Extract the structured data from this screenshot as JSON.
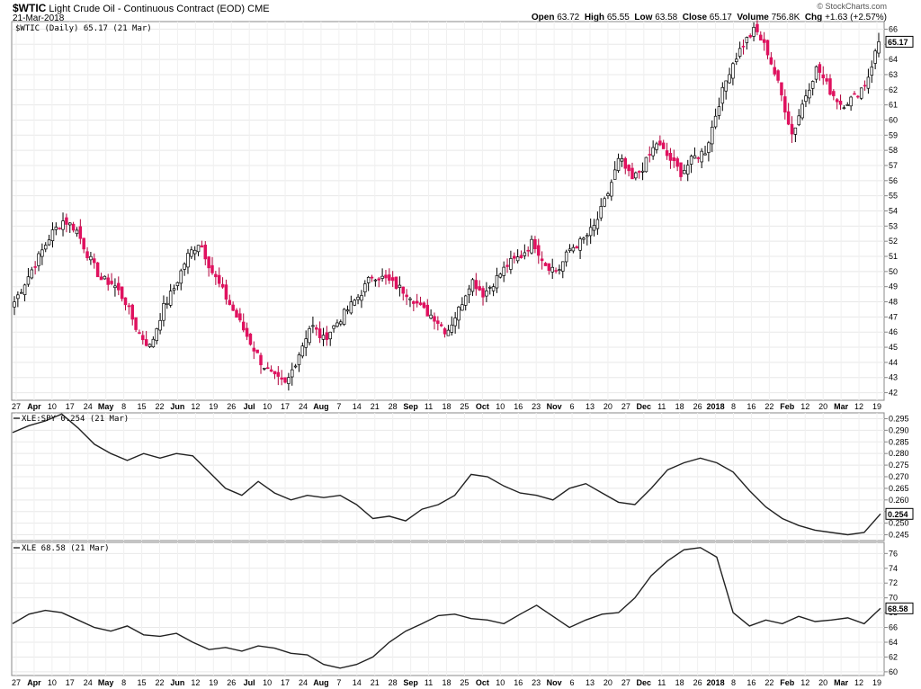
{
  "header": {
    "symbol": "$WTIC",
    "description": "Light Crude Oil - Continuous Contract (EOD)",
    "exchange": "CME",
    "date": "21-Mar-2018",
    "credit": "© StockCharts.com",
    "ohlc": {
      "open_label": "Open",
      "open": "63.72",
      "high_label": "High",
      "high": "65.55",
      "low_label": "Low",
      "low": "63.58",
      "close_label": "Close",
      "close": "65.17",
      "volume_label": "Volume",
      "volume": "756.8K",
      "chg_label": "Chg",
      "chg": "+1.63 (+2.57%)"
    }
  },
  "x_axis_labels": [
    {
      "t": "27",
      "b": false
    },
    {
      "t": "Apr",
      "b": true
    },
    {
      "t": "10",
      "b": false
    },
    {
      "t": "17",
      "b": false
    },
    {
      "t": "24",
      "b": false
    },
    {
      "t": "May",
      "b": true
    },
    {
      "t": "8",
      "b": false
    },
    {
      "t": "15",
      "b": false
    },
    {
      "t": "22",
      "b": false
    },
    {
      "t": "Jun",
      "b": true
    },
    {
      "t": "12",
      "b": false
    },
    {
      "t": "19",
      "b": false
    },
    {
      "t": "26",
      "b": false
    },
    {
      "t": "Jul",
      "b": true
    },
    {
      "t": "10",
      "b": false
    },
    {
      "t": "17",
      "b": false
    },
    {
      "t": "24",
      "b": false
    },
    {
      "t": "Aug",
      "b": true
    },
    {
      "t": "7",
      "b": false
    },
    {
      "t": "14",
      "b": false
    },
    {
      "t": "21",
      "b": false
    },
    {
      "t": "28",
      "b": false
    },
    {
      "t": "Sep",
      "b": true
    },
    {
      "t": "11",
      "b": false
    },
    {
      "t": "18",
      "b": false
    },
    {
      "t": "25",
      "b": false
    },
    {
      "t": "Oct",
      "b": true
    },
    {
      "t": "10",
      "b": false
    },
    {
      "t": "16",
      "b": false
    },
    {
      "t": "23",
      "b": false
    },
    {
      "t": "Nov",
      "b": true
    },
    {
      "t": "6",
      "b": false
    },
    {
      "t": "13",
      "b": false
    },
    {
      "t": "20",
      "b": false
    },
    {
      "t": "27",
      "b": false
    },
    {
      "t": "Dec",
      "b": true
    },
    {
      "t": "11",
      "b": false
    },
    {
      "t": "18",
      "b": false
    },
    {
      "t": "26",
      "b": false
    },
    {
      "t": "2018",
      "b": true
    },
    {
      "t": "8",
      "b": false
    },
    {
      "t": "16",
      "b": false
    },
    {
      "t": "22",
      "b": false
    },
    {
      "t": "Feb",
      "b": true
    },
    {
      "t": "12",
      "b": false
    },
    {
      "t": "20",
      "b": false
    },
    {
      "t": "Mar",
      "b": true
    },
    {
      "t": "12",
      "b": false
    },
    {
      "t": "19",
      "b": false
    }
  ],
  "chart_data": [
    {
      "type": "candlestick",
      "title": "$WTIC (Daily) 65.17 (21 Mar)",
      "last_value_label": "65.17",
      "ylim": [
        41.5,
        66.5
      ],
      "y_ticks": [
        42,
        43,
        44,
        45,
        46,
        47,
        48,
        49,
        50,
        51,
        52,
        53,
        54,
        55,
        56,
        57,
        58,
        59,
        60,
        61,
        62,
        63,
        64,
        65,
        66
      ],
      "anchor_closes": [
        48.0,
        49.5,
        51.0,
        52.5,
        53.4,
        52.8,
        51.0,
        49.5,
        49.2,
        48.0,
        46.0,
        45.0,
        47.5,
        49.0,
        51.0,
        52.0,
        50.0,
        48.5,
        47.0,
        45.5,
        44.0,
        43.0,
        42.5,
        44.5,
        46.5,
        45.5,
        46.5,
        47.5,
        48.5,
        49.8,
        49.5,
        49.0,
        48.5,
        47.5,
        47.0,
        46.0,
        47.5,
        49.5,
        48.5,
        49.5,
        50.5,
        51.0,
        52.0,
        50.5,
        50.0,
        51.5,
        52.0,
        53.0,
        55.0,
        57.5,
        56.0,
        57.0,
        58.5,
        57.5,
        56.5,
        57.5,
        58.0,
        61.0,
        63.5,
        65.0,
        66.0,
        64.5,
        62.0,
        59.0,
        61.5,
        63.5,
        62.0,
        61.0,
        61.5,
        62.5,
        65.17
      ],
      "up_color": "#ffffff",
      "down_color": "#e0115f"
    },
    {
      "type": "line",
      "title": "XLE:SPY 0.254 (21 Mar)",
      "last_value_label": "0.254",
      "ylim": [
        0.2425,
        0.2975
      ],
      "y_ticks": [
        0.245,
        0.25,
        0.255,
        0.26,
        0.265,
        0.27,
        0.275,
        0.28,
        0.285,
        0.29,
        0.295
      ],
      "y_tick_labels": [
        "0.245",
        "0.250",
        "0.255",
        "0.260",
        "0.265",
        "0.270",
        "0.275",
        "0.280",
        "0.285",
        "0.290",
        "0.295"
      ],
      "values": [
        0.289,
        0.292,
        0.294,
        0.297,
        0.291,
        0.284,
        0.28,
        0.277,
        0.28,
        0.278,
        0.28,
        0.279,
        0.272,
        0.265,
        0.262,
        0.268,
        0.263,
        0.26,
        0.262,
        0.261,
        0.262,
        0.258,
        0.252,
        0.253,
        0.251,
        0.256,
        0.258,
        0.262,
        0.271,
        0.27,
        0.266,
        0.263,
        0.262,
        0.26,
        0.265,
        0.267,
        0.263,
        0.259,
        0.258,
        0.265,
        0.273,
        0.276,
        0.278,
        0.276,
        0.272,
        0.264,
        0.257,
        0.252,
        0.249,
        0.247,
        0.246,
        0.245,
        0.246,
        0.254
      ]
    },
    {
      "type": "line",
      "title": "XLE 68.58 (21 Mar)",
      "last_value_label": "68.58",
      "ylim": [
        59.5,
        77.5
      ],
      "y_ticks": [
        60,
        62,
        64,
        66,
        68,
        70,
        72,
        74,
        76
      ],
      "y_tick_labels": [
        "60",
        "62",
        "64",
        "66",
        "68",
        "70",
        "72",
        "74",
        "76"
      ],
      "values": [
        66.5,
        67.8,
        68.3,
        68.0,
        67.0,
        66.0,
        65.5,
        66.2,
        65.0,
        64.8,
        65.2,
        64.0,
        63.0,
        63.3,
        62.8,
        63.5,
        63.2,
        62.5,
        62.3,
        61.0,
        60.5,
        61.0,
        62.0,
        64.0,
        65.5,
        66.5,
        67.6,
        67.8,
        67.2,
        67.0,
        66.5,
        67.8,
        69.0,
        67.5,
        66.0,
        67.0,
        67.8,
        68.0,
        70.0,
        73.0,
        75.0,
        76.5,
        76.8,
        75.5,
        68.0,
        66.2,
        67.0,
        66.5,
        67.5,
        66.8,
        67.0,
        67.3,
        66.5,
        68.58
      ]
    }
  ]
}
